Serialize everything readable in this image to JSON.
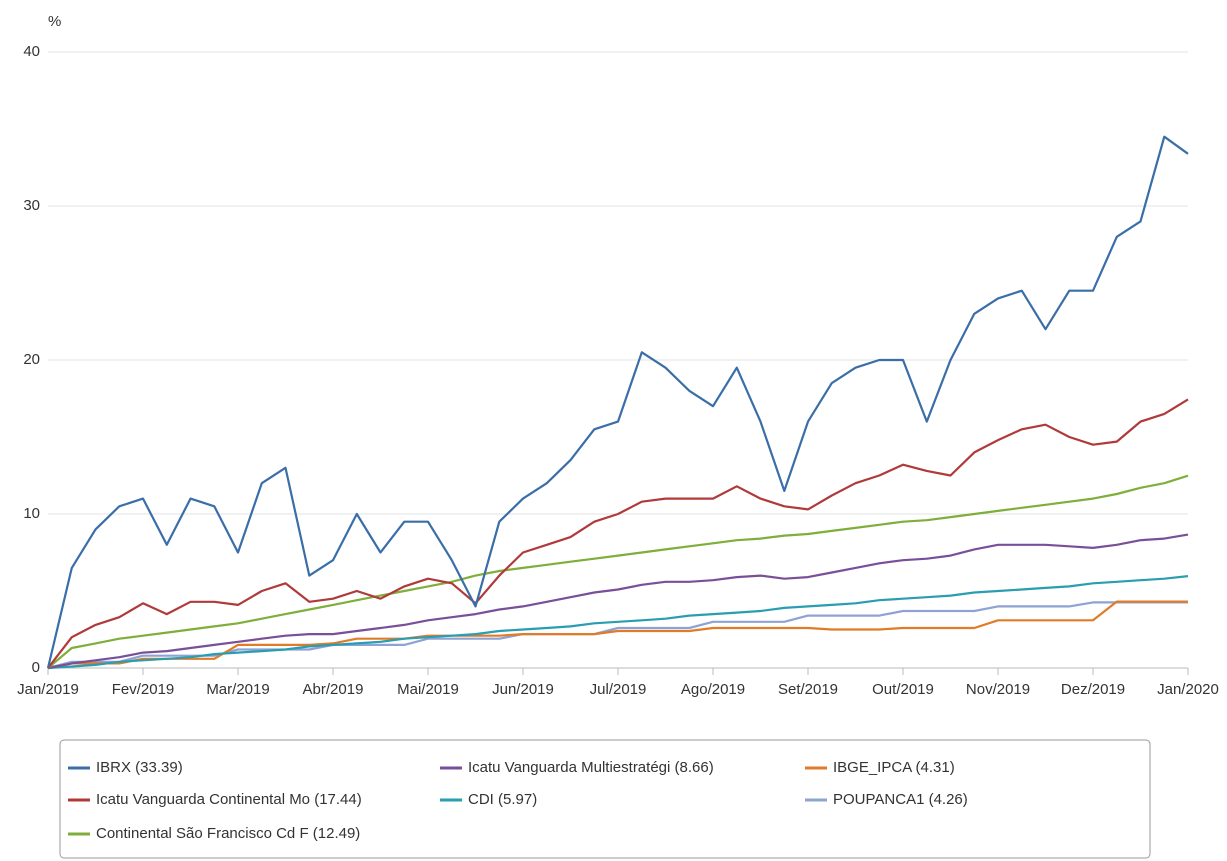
{
  "chart_data": {
    "type": "line",
    "y_label": "%",
    "x": [
      0,
      0.25,
      0.5,
      0.75,
      1,
      1.25,
      1.5,
      1.75,
      2,
      2.25,
      2.5,
      2.75,
      3,
      3.25,
      3.5,
      3.75,
      4,
      4.25,
      4.5,
      4.75,
      5,
      5.25,
      5.5,
      5.75,
      6,
      6.25,
      6.5,
      6.75,
      7,
      7.25,
      7.5,
      7.75,
      8,
      8.25,
      8.5,
      8.75,
      9,
      9.25,
      9.5,
      9.75,
      10,
      10.25,
      10.5,
      10.75,
      11,
      11.25,
      11.5,
      11.75,
      12
    ],
    "xlim": [
      0,
      12
    ],
    "xticks": [
      {
        "value": 0,
        "label": "Jan/2019"
      },
      {
        "value": 1,
        "label": "Fev/2019"
      },
      {
        "value": 2,
        "label": "Mar/2019"
      },
      {
        "value": 3,
        "label": "Abr/2019"
      },
      {
        "value": 4,
        "label": "Mai/2019"
      },
      {
        "value": 5,
        "label": "Jun/2019"
      },
      {
        "value": 6,
        "label": "Jul/2019"
      },
      {
        "value": 7,
        "label": "Ago/2019"
      },
      {
        "value": 8,
        "label": "Set/2019"
      },
      {
        "value": 9,
        "label": "Out/2019"
      },
      {
        "value": 10,
        "label": "Nov/2019"
      },
      {
        "value": 11,
        "label": "Dez/2019"
      },
      {
        "value": 12,
        "label": "Jan/2020"
      }
    ],
    "ylim": [
      0,
      40
    ],
    "yticks": [
      0,
      10,
      20,
      30,
      40
    ],
    "grid": true,
    "series": [
      {
        "name": "IBRX (33.39)",
        "color": "#3a6ea8",
        "values": [
          0,
          6.5,
          9,
          10.5,
          11,
          8,
          11,
          10.5,
          7.5,
          12,
          13,
          6,
          7,
          10,
          7.5,
          9.5,
          9.5,
          7,
          4,
          9.5,
          11,
          12,
          13.5,
          15.5,
          16,
          20.5,
          19.5,
          18,
          17,
          19.5,
          16,
          11.5,
          16,
          18.5,
          19.5,
          20,
          20,
          16,
          20,
          23,
          24,
          24.5,
          22,
          24.5,
          24.5,
          28,
          29,
          34.5,
          33.39
        ]
      },
      {
        "name": "Icatu Vanguarda Continental Mo (17.44)",
        "color": "#b03a3a",
        "values": [
          0,
          2,
          2.8,
          3.3,
          4.2,
          3.5,
          4.3,
          4.3,
          4.1,
          5,
          5.5,
          4.3,
          4.5,
          5,
          4.5,
          5.3,
          5.8,
          5.5,
          4.2,
          6,
          7.5,
          8,
          8.5,
          9.5,
          10,
          10.8,
          11,
          11,
          11,
          11.8,
          11,
          10.5,
          10.3,
          11.2,
          12,
          12.5,
          13.2,
          12.8,
          12.5,
          14,
          14.8,
          15.5,
          15.8,
          15,
          14.5,
          14.7,
          16,
          16.5,
          17.44
        ]
      },
      {
        "name": "Continental São Francisco Cd F (12.49)",
        "color": "#7fae3a",
        "values": [
          0,
          1.3,
          1.6,
          1.9,
          2.1,
          2.3,
          2.5,
          2.7,
          2.9,
          3.2,
          3.5,
          3.8,
          4.1,
          4.4,
          4.7,
          5.0,
          5.3,
          5.6,
          6.0,
          6.3,
          6.5,
          6.7,
          6.9,
          7.1,
          7.3,
          7.5,
          7.7,
          7.9,
          8.1,
          8.3,
          8.4,
          8.6,
          8.7,
          8.9,
          9.1,
          9.3,
          9.5,
          9.6,
          9.8,
          10.0,
          10.2,
          10.4,
          10.6,
          10.8,
          11.0,
          11.3,
          11.7,
          12.0,
          12.49
        ]
      },
      {
        "name": "Icatu Vanguarda Multiestratégi (8.66)",
        "color": "#7a4f9a",
        "values": [
          0,
          0.3,
          0.5,
          0.7,
          1.0,
          1.1,
          1.3,
          1.5,
          1.7,
          1.9,
          2.1,
          2.2,
          2.2,
          2.4,
          2.6,
          2.8,
          3.1,
          3.3,
          3.5,
          3.8,
          4.0,
          4.3,
          4.6,
          4.9,
          5.1,
          5.4,
          5.6,
          5.6,
          5.7,
          5.9,
          6.0,
          5.8,
          5.9,
          6.2,
          6.5,
          6.8,
          7.0,
          7.1,
          7.3,
          7.7,
          8.0,
          8.0,
          8.0,
          7.9,
          7.8,
          8.0,
          8.3,
          8.4,
          8.66
        ]
      },
      {
        "name": "CDI (5.97)",
        "color": "#2a9db0",
        "values": [
          0,
          0.1,
          0.2,
          0.4,
          0.5,
          0.6,
          0.7,
          0.9,
          1.0,
          1.1,
          1.2,
          1.4,
          1.5,
          1.6,
          1.7,
          1.9,
          2.0,
          2.1,
          2.2,
          2.4,
          2.5,
          2.6,
          2.7,
          2.9,
          3.0,
          3.1,
          3.2,
          3.4,
          3.5,
          3.6,
          3.7,
          3.9,
          4.0,
          4.1,
          4.2,
          4.4,
          4.5,
          4.6,
          4.7,
          4.9,
          5.0,
          5.1,
          5.2,
          5.3,
          5.5,
          5.6,
          5.7,
          5.8,
          5.97
        ]
      },
      {
        "name": "IBGE_IPCA (4.31)",
        "color": "#e07b28",
        "values": [
          0,
          0.3,
          0.3,
          0.3,
          0.6,
          0.6,
          0.6,
          0.6,
          1.5,
          1.5,
          1.5,
          1.5,
          1.6,
          1.9,
          1.9,
          1.9,
          2.1,
          2.1,
          2.1,
          2.1,
          2.2,
          2.2,
          2.2,
          2.2,
          2.4,
          2.4,
          2.4,
          2.4,
          2.6,
          2.6,
          2.6,
          2.6,
          2.6,
          2.5,
          2.5,
          2.5,
          2.6,
          2.6,
          2.6,
          2.6,
          3.1,
          3.1,
          3.1,
          3.1,
          3.1,
          4.31,
          4.31,
          4.31,
          4.31
        ]
      },
      {
        "name": "POUPANCA1 (4.26)",
        "color": "#8fa2d4",
        "values": [
          0,
          0.4,
          0.4,
          0.4,
          0.8,
          0.8,
          0.8,
          0.8,
          1.2,
          1.2,
          1.2,
          1.2,
          1.5,
          1.5,
          1.5,
          1.5,
          1.9,
          1.9,
          1.9,
          1.9,
          2.2,
          2.2,
          2.2,
          2.2,
          2.6,
          2.6,
          2.6,
          2.6,
          3.0,
          3.0,
          3.0,
          3.0,
          3.4,
          3.4,
          3.4,
          3.4,
          3.7,
          3.7,
          3.7,
          3.7,
          4.0,
          4.0,
          4.0,
          4.0,
          4.26,
          4.26,
          4.26,
          4.26,
          4.26
        ]
      }
    ]
  }
}
